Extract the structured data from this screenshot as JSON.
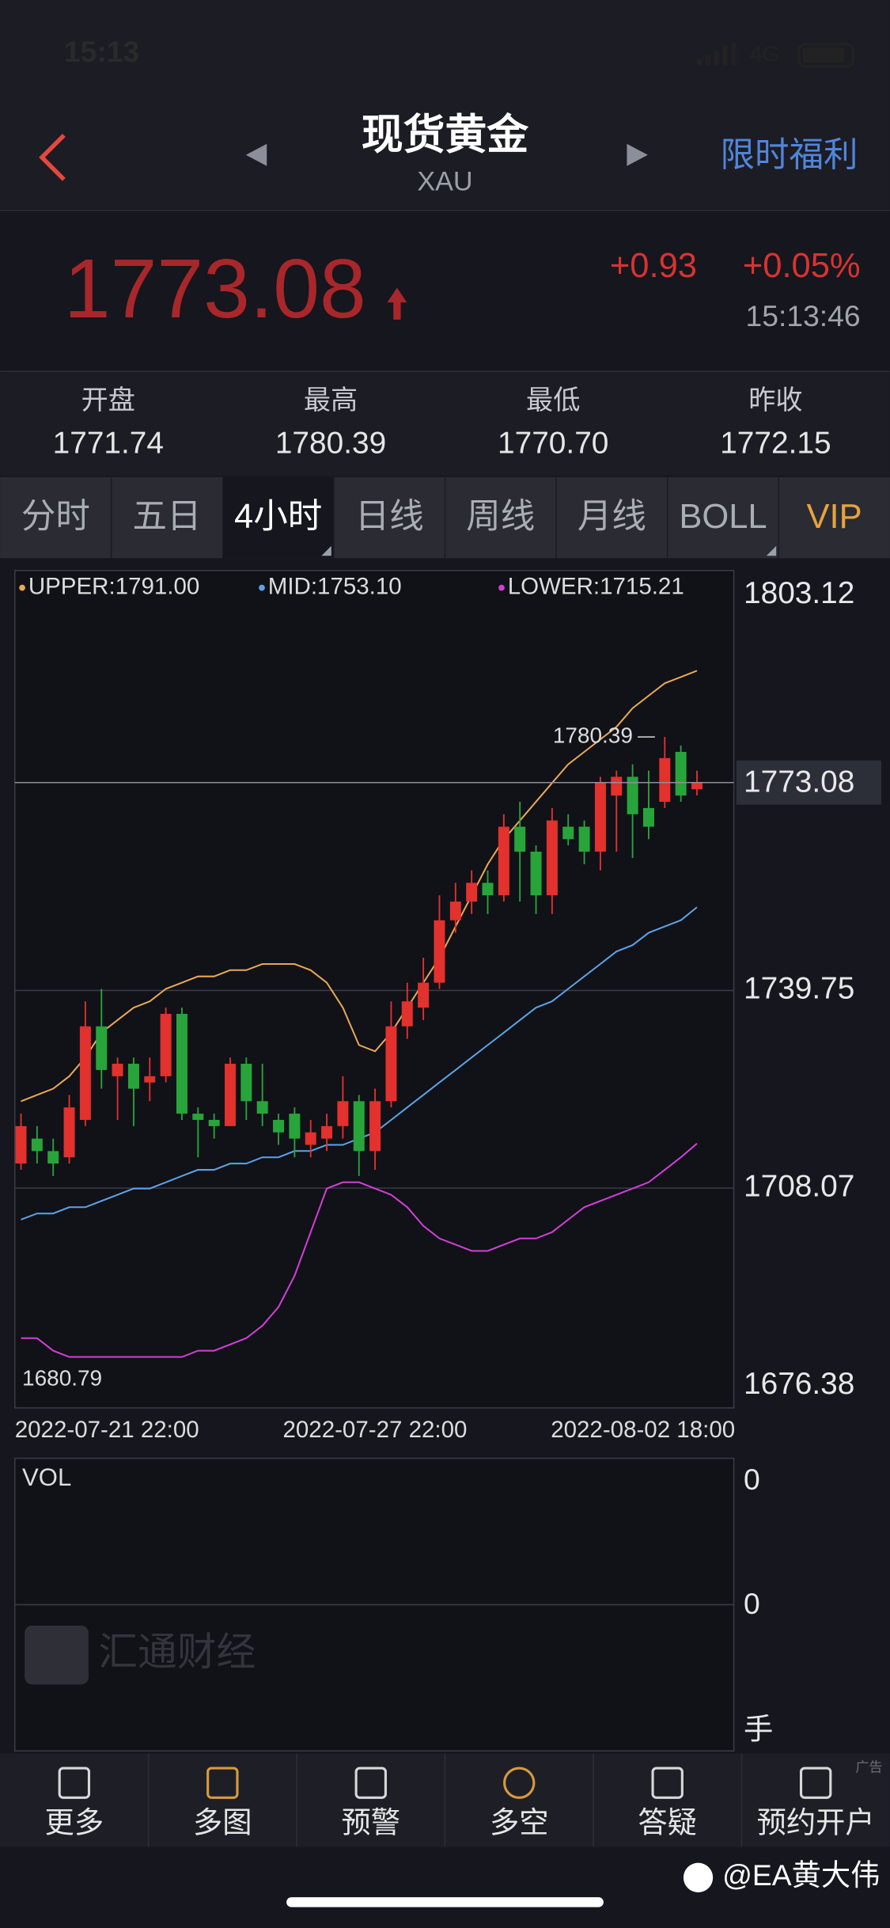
{
  "status": {
    "time": "15:13",
    "network": "4G"
  },
  "header": {
    "title": "现货黄金",
    "subtitle": "XAU",
    "promo": "限时福利"
  },
  "quote": {
    "price": "1773.08",
    "change": "+0.93",
    "change_pct": "+0.05%",
    "time": "15:13:46"
  },
  "stats": [
    {
      "label": "开盘",
      "value": "1771.74"
    },
    {
      "label": "最高",
      "value": "1780.39"
    },
    {
      "label": "最低",
      "value": "1770.70"
    },
    {
      "label": "昨收",
      "value": "1772.15"
    }
  ],
  "tabs": [
    "分时",
    "五日",
    "4小时",
    "日线",
    "周线",
    "月线",
    "BOLL",
    "VIP"
  ],
  "chart_data": {
    "type": "candlestick",
    "up_color": "#e3312d",
    "down_color": "#27a53a",
    "open": [
      1712,
      1716,
      1714,
      1713,
      1719,
      1734,
      1726,
      1728,
      1725,
      1726,
      1736,
      1720,
      1719,
      1718,
      1728,
      1722,
      1719,
      1720,
      1715,
      1716,
      1718,
      1722,
      1714,
      1722,
      1734,
      1737,
      1741,
      1751,
      1754,
      1757,
      1755,
      1766,
      1762,
      1755,
      1766,
      1766,
      1762,
      1771,
      1774,
      1769,
      1770,
      1778,
      1772
    ],
    "close": [
      1718,
      1714,
      1712,
      1721,
      1734,
      1727,
      1728,
      1724,
      1726,
      1736,
      1720,
      1719,
      1718,
      1728,
      1722,
      1720,
      1717,
      1716,
      1717,
      1718,
      1722,
      1714,
      1722,
      1734,
      1738,
      1741,
      1751,
      1754,
      1757,
      1755,
      1766,
      1762,
      1755,
      1767,
      1764,
      1762,
      1773,
      1774,
      1768,
      1766,
      1777,
      1771,
      1773.08
    ],
    "high": [
      1720,
      1718,
      1716,
      1723,
      1738,
      1740,
      1729,
      1729,
      1729,
      1737,
      1737,
      1721,
      1720,
      1729,
      1729,
      1728,
      1720,
      1721,
      1719,
      1720,
      1726,
      1723,
      1724,
      1738,
      1741,
      1745,
      1755,
      1757,
      1759,
      1759,
      1768,
      1770,
      1763,
      1769,
      1768,
      1767,
      1774,
      1775,
      1776,
      1775,
      1780.39,
      1779,
      1775
    ],
    "low": [
      1711,
      1712,
      1710,
      1712,
      1718,
      1724,
      1719,
      1718,
      1722,
      1725,
      1719,
      1713,
      1716,
      1718,
      1719,
      1718,
      1715,
      1713,
      1713,
      1714,
      1716,
      1710,
      1711,
      1721,
      1732,
      1735,
      1740,
      1749,
      1752,
      1752,
      1754,
      1754,
      1752,
      1752,
      1763,
      1760,
      1759,
      1762,
      1761,
      1764,
      1769,
      1770,
      1771
    ],
    "series": [
      {
        "name": "UPPER:1791.00",
        "color": "#e8a857",
        "values": [
          1722,
          1723,
          1724,
          1726,
          1729,
          1733,
          1735,
          1737,
          1738,
          1740,
          1741,
          1742,
          1742,
          1743,
          1743,
          1744,
          1744,
          1744,
          1743,
          1741,
          1737,
          1731,
          1730,
          1733,
          1737,
          1741,
          1745,
          1750,
          1755,
          1760,
          1764,
          1767,
          1770,
          1773,
          1776,
          1778,
          1780,
          1782,
          1785,
          1787,
          1789,
          1790,
          1791
        ]
      },
      {
        "name": "MID:1753.10",
        "color": "#5ba3e6",
        "values": [
          1703,
          1704,
          1704,
          1705,
          1705,
          1706,
          1707,
          1708,
          1708,
          1709,
          1710,
          1711,
          1711,
          1712,
          1712,
          1713,
          1713,
          1714,
          1714,
          1715,
          1715,
          1716,
          1717,
          1719,
          1721,
          1723,
          1725,
          1727,
          1729,
          1731,
          1733,
          1735,
          1737,
          1738,
          1740,
          1742,
          1744,
          1746,
          1747,
          1749,
          1750,
          1751,
          1753.1
        ]
      },
      {
        "name": "LOWER:1715.21",
        "color": "#d23fd6",
        "values": [
          1684,
          1684,
          1682,
          1681,
          1681,
          1681,
          1681,
          1681,
          1681,
          1681,
          1681,
          1682,
          1682,
          1683,
          1684,
          1686,
          1689,
          1694,
          1701,
          1708,
          1709,
          1709,
          1708,
          1707,
          1705,
          1702,
          1700,
          1699,
          1698,
          1698,
          1699,
          1700,
          1700,
          1701,
          1703,
          1705,
          1706,
          1707,
          1708,
          1709,
          1711,
          1713,
          1715.21
        ]
      }
    ],
    "ylim": [
      1672.83,
      1807.07
    ],
    "yticks": [
      1803.12,
      1739.75,
      1708.07,
      1676.38
    ],
    "last_price": 1773.08,
    "max_label": "1780.39",
    "min_label": "1680.79",
    "x_labels": [
      "2022-07-21 22:00",
      "2022-07-27 22:00",
      "2022-08-02 18:00"
    ]
  },
  "volume": {
    "title": "VOL",
    "tick_labels": [
      "0",
      "0"
    ],
    "unit": "手"
  },
  "watermark": "汇通财经",
  "nav": [
    "更多",
    "多图",
    "预警",
    "多空",
    "答疑",
    "预约开户"
  ],
  "ad": "广告",
  "credit": "@EA黄大伟"
}
